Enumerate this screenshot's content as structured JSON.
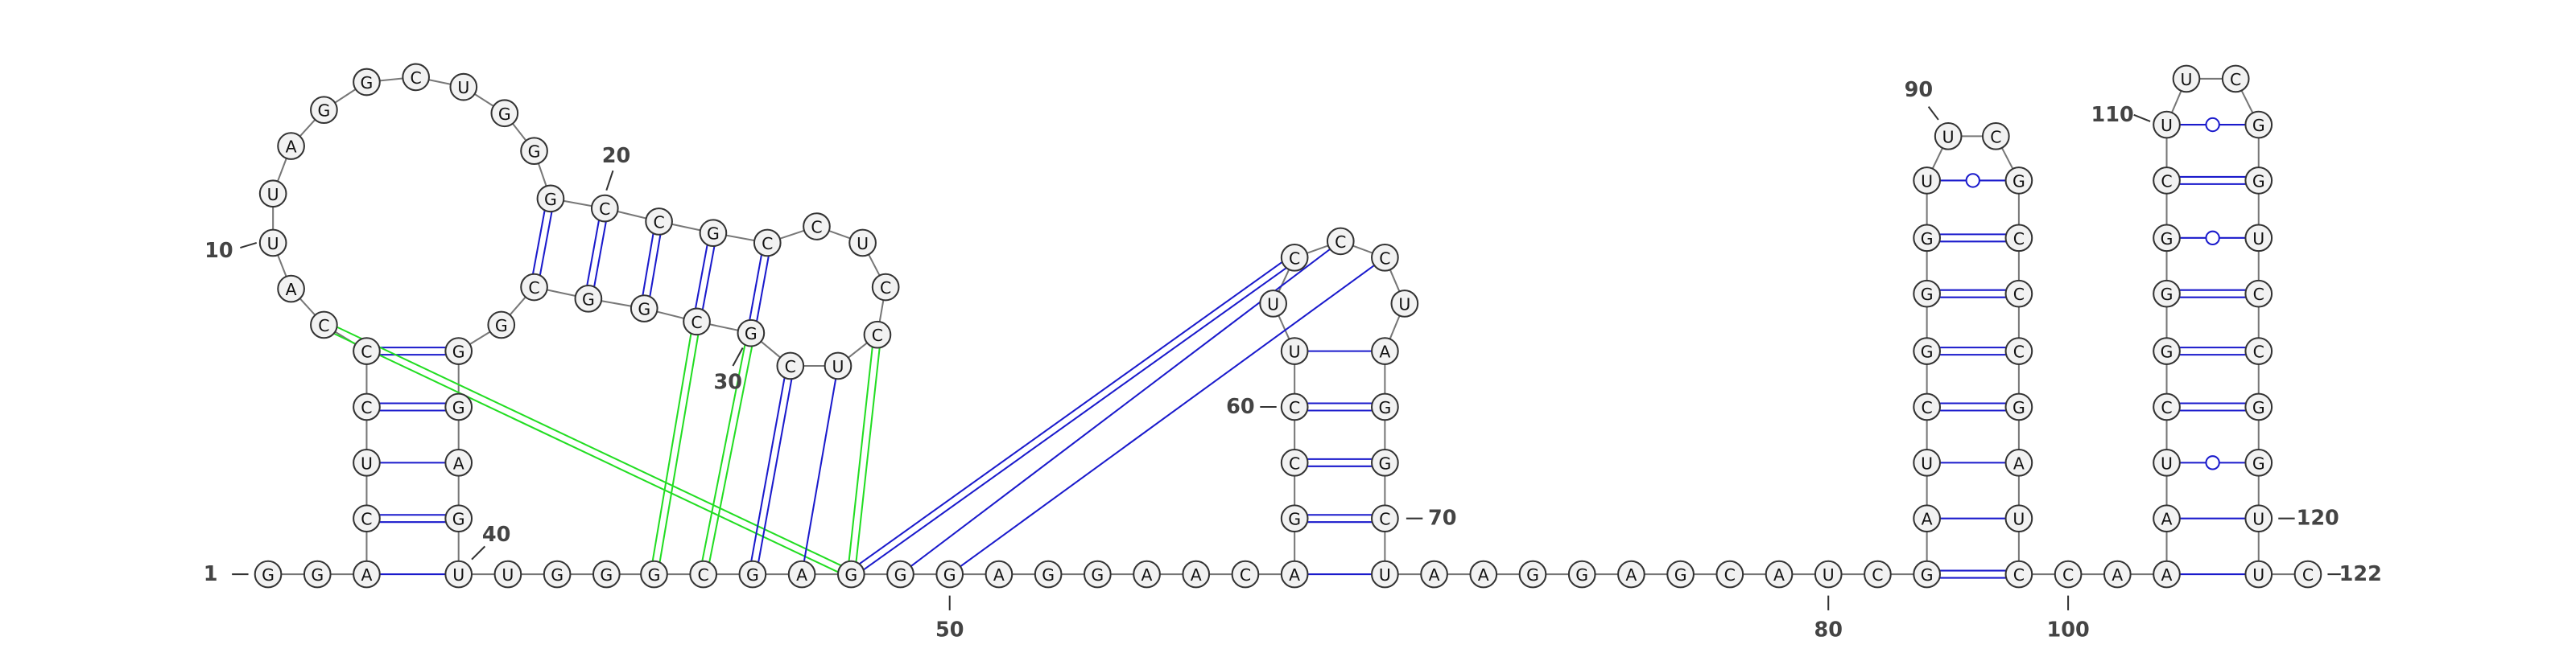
{
  "nucleotides": [
    "G",
    "G",
    "A",
    "C",
    "U",
    "C",
    "C",
    "C",
    "A",
    "U",
    "U",
    "A",
    "G",
    "G",
    "C",
    "U",
    "G",
    "G",
    "G",
    "C",
    "C",
    "G",
    "C",
    "C",
    "U",
    "C",
    "C",
    "U",
    "C",
    "G",
    "C",
    "G",
    "G",
    "C",
    "G",
    "G",
    "G",
    "A",
    "G",
    "U",
    "U",
    "G",
    "G",
    "G",
    "C",
    "G",
    "A",
    "G",
    "G",
    "G",
    "A",
    "G",
    "G",
    "A",
    "A",
    "C",
    "A",
    "G",
    "C",
    "C",
    "U",
    "U",
    "C",
    "C",
    "C",
    "U",
    "A",
    "G",
    "G",
    "C",
    "U",
    "A",
    "A",
    "G",
    "G",
    "A",
    "G",
    "C",
    "A",
    "U",
    "C",
    "G",
    "A",
    "U",
    "C",
    "G",
    "G",
    "G",
    "U",
    "U",
    "C",
    "G",
    "C",
    "C",
    "C",
    "G",
    "A",
    "U",
    "C",
    "C",
    "A",
    "A",
    "A",
    "U",
    "C",
    "G",
    "G",
    "G",
    "C",
    "U",
    "U",
    "C",
    "G",
    "G",
    "U",
    "C",
    "C",
    "G",
    "G",
    "U",
    "U",
    "C"
  ],
  "position_labels": [
    "1",
    "10",
    "20",
    "30",
    "40",
    "50",
    "60",
    "70",
    "80",
    "90",
    "100",
    "110",
    "120",
    "122"
  ]
}
